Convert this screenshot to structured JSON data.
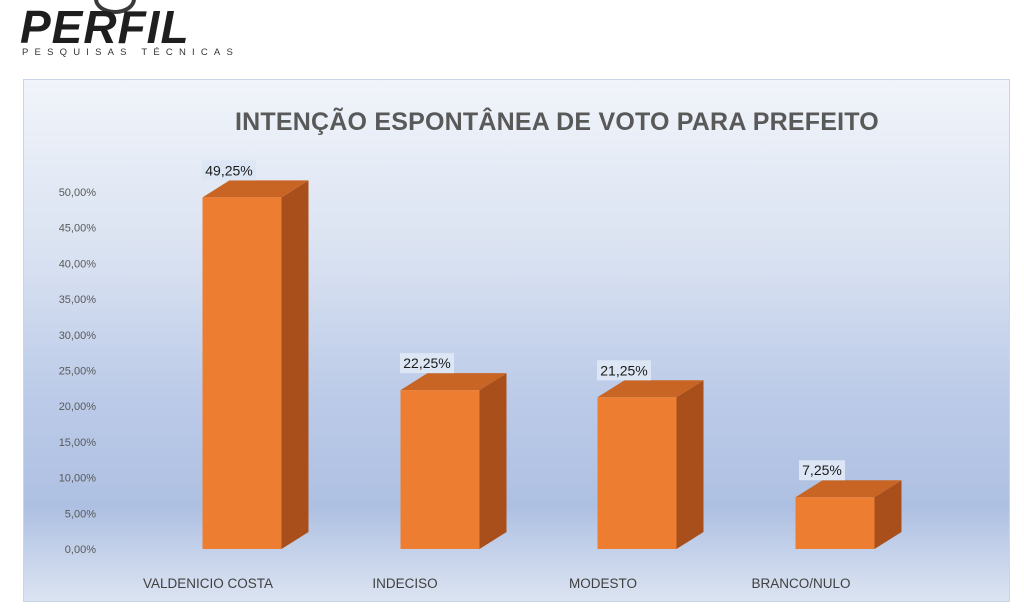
{
  "logo": {
    "name": "PERFIL",
    "tagline": "PESQUISAS TÉCNICAS"
  },
  "colors": {
    "bar_front": "#ed7d31",
    "bar_side": "#a84f1c",
    "bar_top": "#c86524",
    "label_box": "#dce6f4"
  },
  "chart_data": {
    "type": "bar",
    "title": "INTENÇÃO ESPONTÂNEA DE VOTO PARA PREFEITO",
    "categories": [
      "VALDENICIO COSTA",
      "INDECISO",
      "MODESTO",
      "BRANCO/NULO"
    ],
    "values": [
      49.25,
      22.25,
      21.25,
      7.25
    ],
    "data_labels": [
      "49,25%",
      "22,25%",
      "21,25%",
      "7,25%"
    ],
    "ylim": [
      0,
      50
    ],
    "yticks": [
      "0,00%",
      "5,00%",
      "10,00%",
      "15,00%",
      "20,00%",
      "25,00%",
      "30,00%",
      "35,00%",
      "40,00%",
      "45,00%",
      "50,00%"
    ],
    "ytick_values": [
      0,
      5,
      10,
      15,
      20,
      25,
      30,
      35,
      40,
      45,
      50
    ],
    "grid": false,
    "legend": "none",
    "style": "3d-column"
  }
}
